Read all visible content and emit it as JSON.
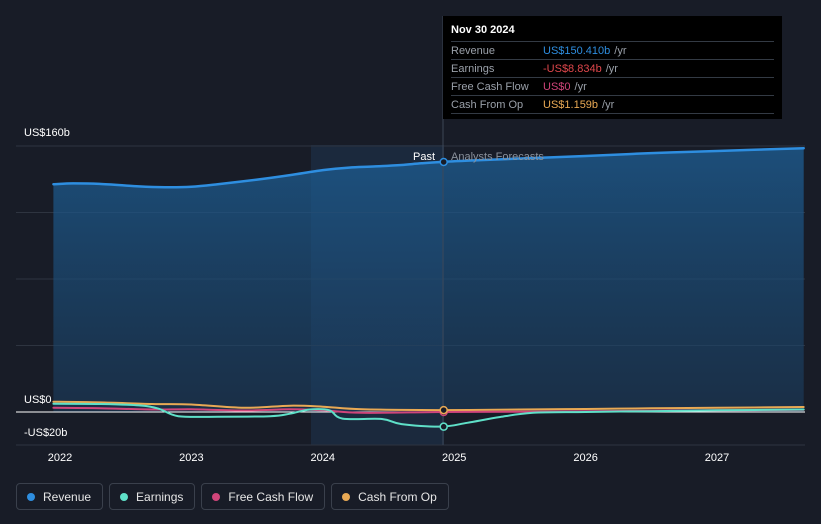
{
  "chart_data": {
    "type": "line",
    "y_axis": {
      "ylim": [
        -20,
        160
      ],
      "tick_labels": [
        "US$160b",
        "US$0",
        "-US$20b"
      ]
    },
    "x_axis": {
      "tick_labels": [
        "2022",
        "2023",
        "2024",
        "2025",
        "2026",
        "2027"
      ]
    },
    "regions": {
      "past_label": "Past",
      "forecast_label": "Analysts Forecasts"
    },
    "grid": true,
    "legend_position": "bottom-left",
    "series": [
      {
        "name": "Revenue",
        "color": "#2e8ee0",
        "x": [
          2021.95,
          2022.1,
          2022.3,
          2022.6,
          2022.8,
          2023.0,
          2023.2,
          2023.5,
          2023.75,
          2024.0,
          2024.2,
          2024.4,
          2024.6,
          2024.75,
          2024.9,
          2025.2,
          2025.6,
          2026.0,
          2026.5,
          2027.0,
          2027.66
        ],
        "y": [
          137,
          137.5,
          137.2,
          135.7,
          135.2,
          135.5,
          137,
          139.8,
          142.5,
          145.5,
          147,
          147.7,
          148.6,
          149.6,
          150.4,
          151.5,
          152.8,
          154.0,
          155.7,
          157.0,
          158.7
        ]
      },
      {
        "name": "Earnings",
        "color": "#5fe0c8",
        "x": [
          2021.95,
          2022.3,
          2022.6,
          2022.75,
          2022.9,
          2023.2,
          2023.6,
          2023.75,
          2023.9,
          2024.05,
          2024.15,
          2024.45,
          2024.6,
          2024.9,
          2025.1,
          2025.35,
          2025.6,
          2026.0,
          2026.5,
          2027.0,
          2027.66
        ],
        "y": [
          5,
          4.8,
          4,
          2,
          -2.5,
          -2.8,
          -2.5,
          -1,
          1.5,
          1,
          -4,
          -4.2,
          -7.3,
          -8.8,
          -6.5,
          -3,
          -0.5,
          0,
          0.5,
          1.0,
          1.5
        ]
      },
      {
        "name": "Free Cash Flow",
        "color": "#d0457a",
        "x": [
          2021.95,
          2022.3,
          2022.7,
          2023.0,
          2023.4,
          2023.75,
          2024.0,
          2024.3,
          2024.9,
          2025.5,
          2026.0,
          2026.5,
          2027.0,
          2027.66
        ],
        "y": [
          2.5,
          2.3,
          1.5,
          1.6,
          0.9,
          1.6,
          1.0,
          -0.5,
          0,
          0.2,
          0.5,
          0.8,
          1.0,
          1.3
        ]
      },
      {
        "name": "Cash From Op",
        "color": "#e9a954",
        "x": [
          2021.95,
          2022.3,
          2022.7,
          2023.0,
          2023.4,
          2023.75,
          2024.0,
          2024.3,
          2024.9,
          2025.5,
          2026.0,
          2026.5,
          2027.0,
          2027.66
        ],
        "y": [
          6.2,
          5.8,
          4.8,
          4.5,
          2.5,
          3.8,
          3.2,
          1.6,
          1.159,
          1.5,
          1.8,
          2.2,
          2.5,
          3.0
        ]
      }
    ],
    "highlight_x": 2024.92,
    "markers": [
      {
        "series": "Revenue",
        "x": 2024.92,
        "y": 150.41
      },
      {
        "series": "Earnings",
        "x": 2024.92,
        "y": -8.834
      },
      {
        "series": "Free Cash Flow",
        "x": 2024.92,
        "y": 0
      },
      {
        "series": "Cash From Op",
        "x": 2024.92,
        "y": 1.159
      }
    ]
  },
  "tooltip": {
    "date": "Nov 30 2024",
    "rows": [
      {
        "name": "Revenue",
        "value": "US$150.410b",
        "unit": "/yr",
        "color": "#2e8ee0"
      },
      {
        "name": "Earnings",
        "value": "-US$8.834b",
        "unit": "/yr",
        "color": "#e0474c"
      },
      {
        "name": "Free Cash Flow",
        "value": "US$0",
        "unit": "/yr",
        "color": "#d0457a"
      },
      {
        "name": "Cash From Op",
        "value": "US$1.159b",
        "unit": "/yr",
        "color": "#e9a954"
      }
    ]
  },
  "legend": [
    {
      "label": "Revenue",
      "color": "#2e8ee0"
    },
    {
      "label": "Earnings",
      "color": "#5fe0c8"
    },
    {
      "label": "Free Cash Flow",
      "color": "#d0457a"
    },
    {
      "label": "Cash From Op",
      "color": "#e9a954"
    }
  ]
}
